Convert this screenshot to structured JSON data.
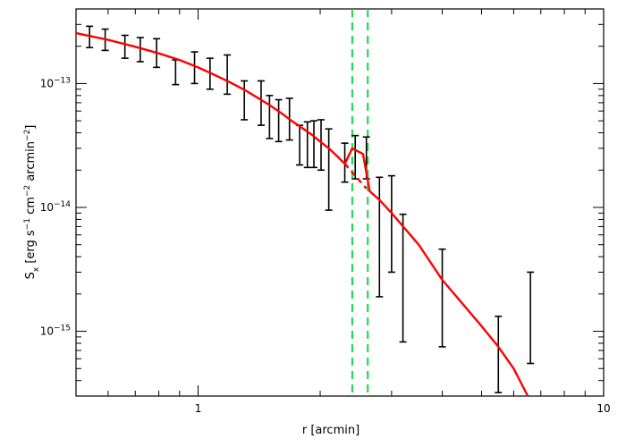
{
  "chart_data": {
    "type": "scatter",
    "title": "",
    "xlabel": "r [arcmin]",
    "ylabel": {
      "main": "S",
      "sub": "x",
      "units_prefix": " [erg s",
      "s_exp": "−1",
      "cm_part": " cm",
      "cm_exp": "−2",
      "arcmin_part": " arcmin",
      "arcmin_exp": "−2",
      "close": "]"
    },
    "xscale": "log",
    "yscale": "log",
    "xlim": [
      0.5,
      10
    ],
    "ylim": [
      3e-16,
      4e-13
    ],
    "x_ticks": [
      {
        "value": 1,
        "label": "1"
      },
      {
        "value": 10,
        "label": "10"
      }
    ],
    "y_ticks": [
      {
        "value": 1e-15,
        "base": "10",
        "exp": "−15"
      },
      {
        "value": 1e-14,
        "base": "10",
        "exp": "−14"
      },
      {
        "value": 1e-13,
        "base": "10",
        "exp": "−13"
      }
    ],
    "grid": false,
    "legend": "none",
    "series": [
      {
        "kind": "errorbar",
        "color": "#000000",
        "points": [
          {
            "x": 0.54,
            "lo": 1.95e-13,
            "hi": 2.9e-13
          },
          {
            "x": 0.59,
            "lo": 1.85e-13,
            "hi": 2.75e-13
          },
          {
            "x": 0.66,
            "lo": 1.6e-13,
            "hi": 2.45e-13
          },
          {
            "x": 0.72,
            "lo": 1.5e-13,
            "hi": 2.35e-13
          },
          {
            "x": 0.79,
            "lo": 1.35e-13,
            "hi": 2.3e-13
          },
          {
            "x": 0.88,
            "lo": 9.8e-14,
            "hi": 1.55e-13
          },
          {
            "x": 0.98,
            "lo": 1e-13,
            "hi": 1.8e-13
          },
          {
            "x": 1.07,
            "lo": 9e-14,
            "hi": 1.6e-13
          },
          {
            "x": 1.18,
            "lo": 8.2e-14,
            "hi": 1.7e-13
          },
          {
            "x": 1.3,
            "lo": 5.1e-14,
            "hi": 1.05e-13
          },
          {
            "x": 1.43,
            "lo": 4.6e-14,
            "hi": 1.05e-13
          },
          {
            "x": 1.5,
            "lo": 3.6e-14,
            "hi": 8e-14
          },
          {
            "x": 1.58,
            "lo": 3.4e-14,
            "hi": 7.4e-14
          },
          {
            "x": 1.68,
            "lo": 3.5e-14,
            "hi": 7.6e-14
          },
          {
            "x": 1.78,
            "lo": 2.2e-14,
            "hi": 4.6e-14
          },
          {
            "x": 1.86,
            "lo": 2.1e-14,
            "hi": 4.9e-14
          },
          {
            "x": 1.93,
            "lo": 2.1e-14,
            "hi": 5e-14
          },
          {
            "x": 2.01,
            "lo": 2e-14,
            "hi": 5.1e-14
          },
          {
            "x": 2.1,
            "lo": 9.5e-15,
            "hi": 4.3e-14
          },
          {
            "x": 2.3,
            "lo": 1.6e-14,
            "hi": 3.3e-14
          },
          {
            "x": 2.44,
            "lo": 1.7e-14,
            "hi": 3.8e-14
          },
          {
            "x": 2.6,
            "lo": 1.7e-14,
            "hi": 3.7e-14
          },
          {
            "x": 2.8,
            "lo": 1.9e-15,
            "hi": 1.75e-14
          },
          {
            "x": 3.0,
            "lo": 3e-15,
            "hi": 1.8e-14
          },
          {
            "x": 3.2,
            "lo": 8.2e-16,
            "hi": 8.8e-15
          },
          {
            "x": 4.0,
            "lo": 7.5e-16,
            "hi": 4.6e-15
          },
          {
            "x": 5.5,
            "lo": 3.2e-16,
            "hi": 1.32e-15
          },
          {
            "x": 6.6,
            "lo": 5.5e-16,
            "hi": 3e-15
          }
        ]
      },
      {
        "kind": "line",
        "color": "#ff0000",
        "points": [
          [
            0.5,
            2.55e-13
          ],
          [
            0.6,
            2.25e-13
          ],
          [
            0.7,
            1.98e-13
          ],
          [
            0.8,
            1.75e-13
          ],
          [
            0.9,
            1.55e-13
          ],
          [
            1.0,
            1.35e-13
          ],
          [
            1.1,
            1.17e-13
          ],
          [
            1.2,
            1.02e-13
          ],
          [
            1.3,
            8.9e-14
          ],
          [
            1.4,
            7.7e-14
          ],
          [
            1.5,
            6.7e-14
          ],
          [
            1.6,
            5.8e-14
          ],
          [
            1.7,
            5e-14
          ],
          [
            1.8,
            4.4e-14
          ],
          [
            1.9,
            3.9e-14
          ],
          [
            2.0,
            3.4e-14
          ],
          [
            2.1,
            3e-14
          ],
          [
            2.2,
            2.6e-14
          ],
          [
            2.3,
            2.25e-14
          ],
          [
            2.4,
            3e-14
          ],
          [
            2.55,
            2.7e-14
          ],
          [
            2.65,
            1.35e-14
          ],
          [
            2.8,
            1.15e-14
          ],
          [
            3.0,
            9e-15
          ],
          [
            3.5,
            5e-15
          ],
          [
            4.0,
            2.6e-15
          ],
          [
            5.0,
            1.1e-15
          ],
          [
            5.5,
            7.5e-16
          ],
          [
            6.0,
            5e-16
          ],
          [
            6.5,
            3e-16
          ]
        ]
      },
      {
        "kind": "line-dashed",
        "color": "#ff0000",
        "points": [
          [
            2.3,
            2.25e-14
          ],
          [
            2.6,
            1.42e-14
          ]
        ]
      },
      {
        "kind": "vline-dashed",
        "color": "#22dd55",
        "x": [
          2.4,
          2.62
        ]
      }
    ]
  }
}
